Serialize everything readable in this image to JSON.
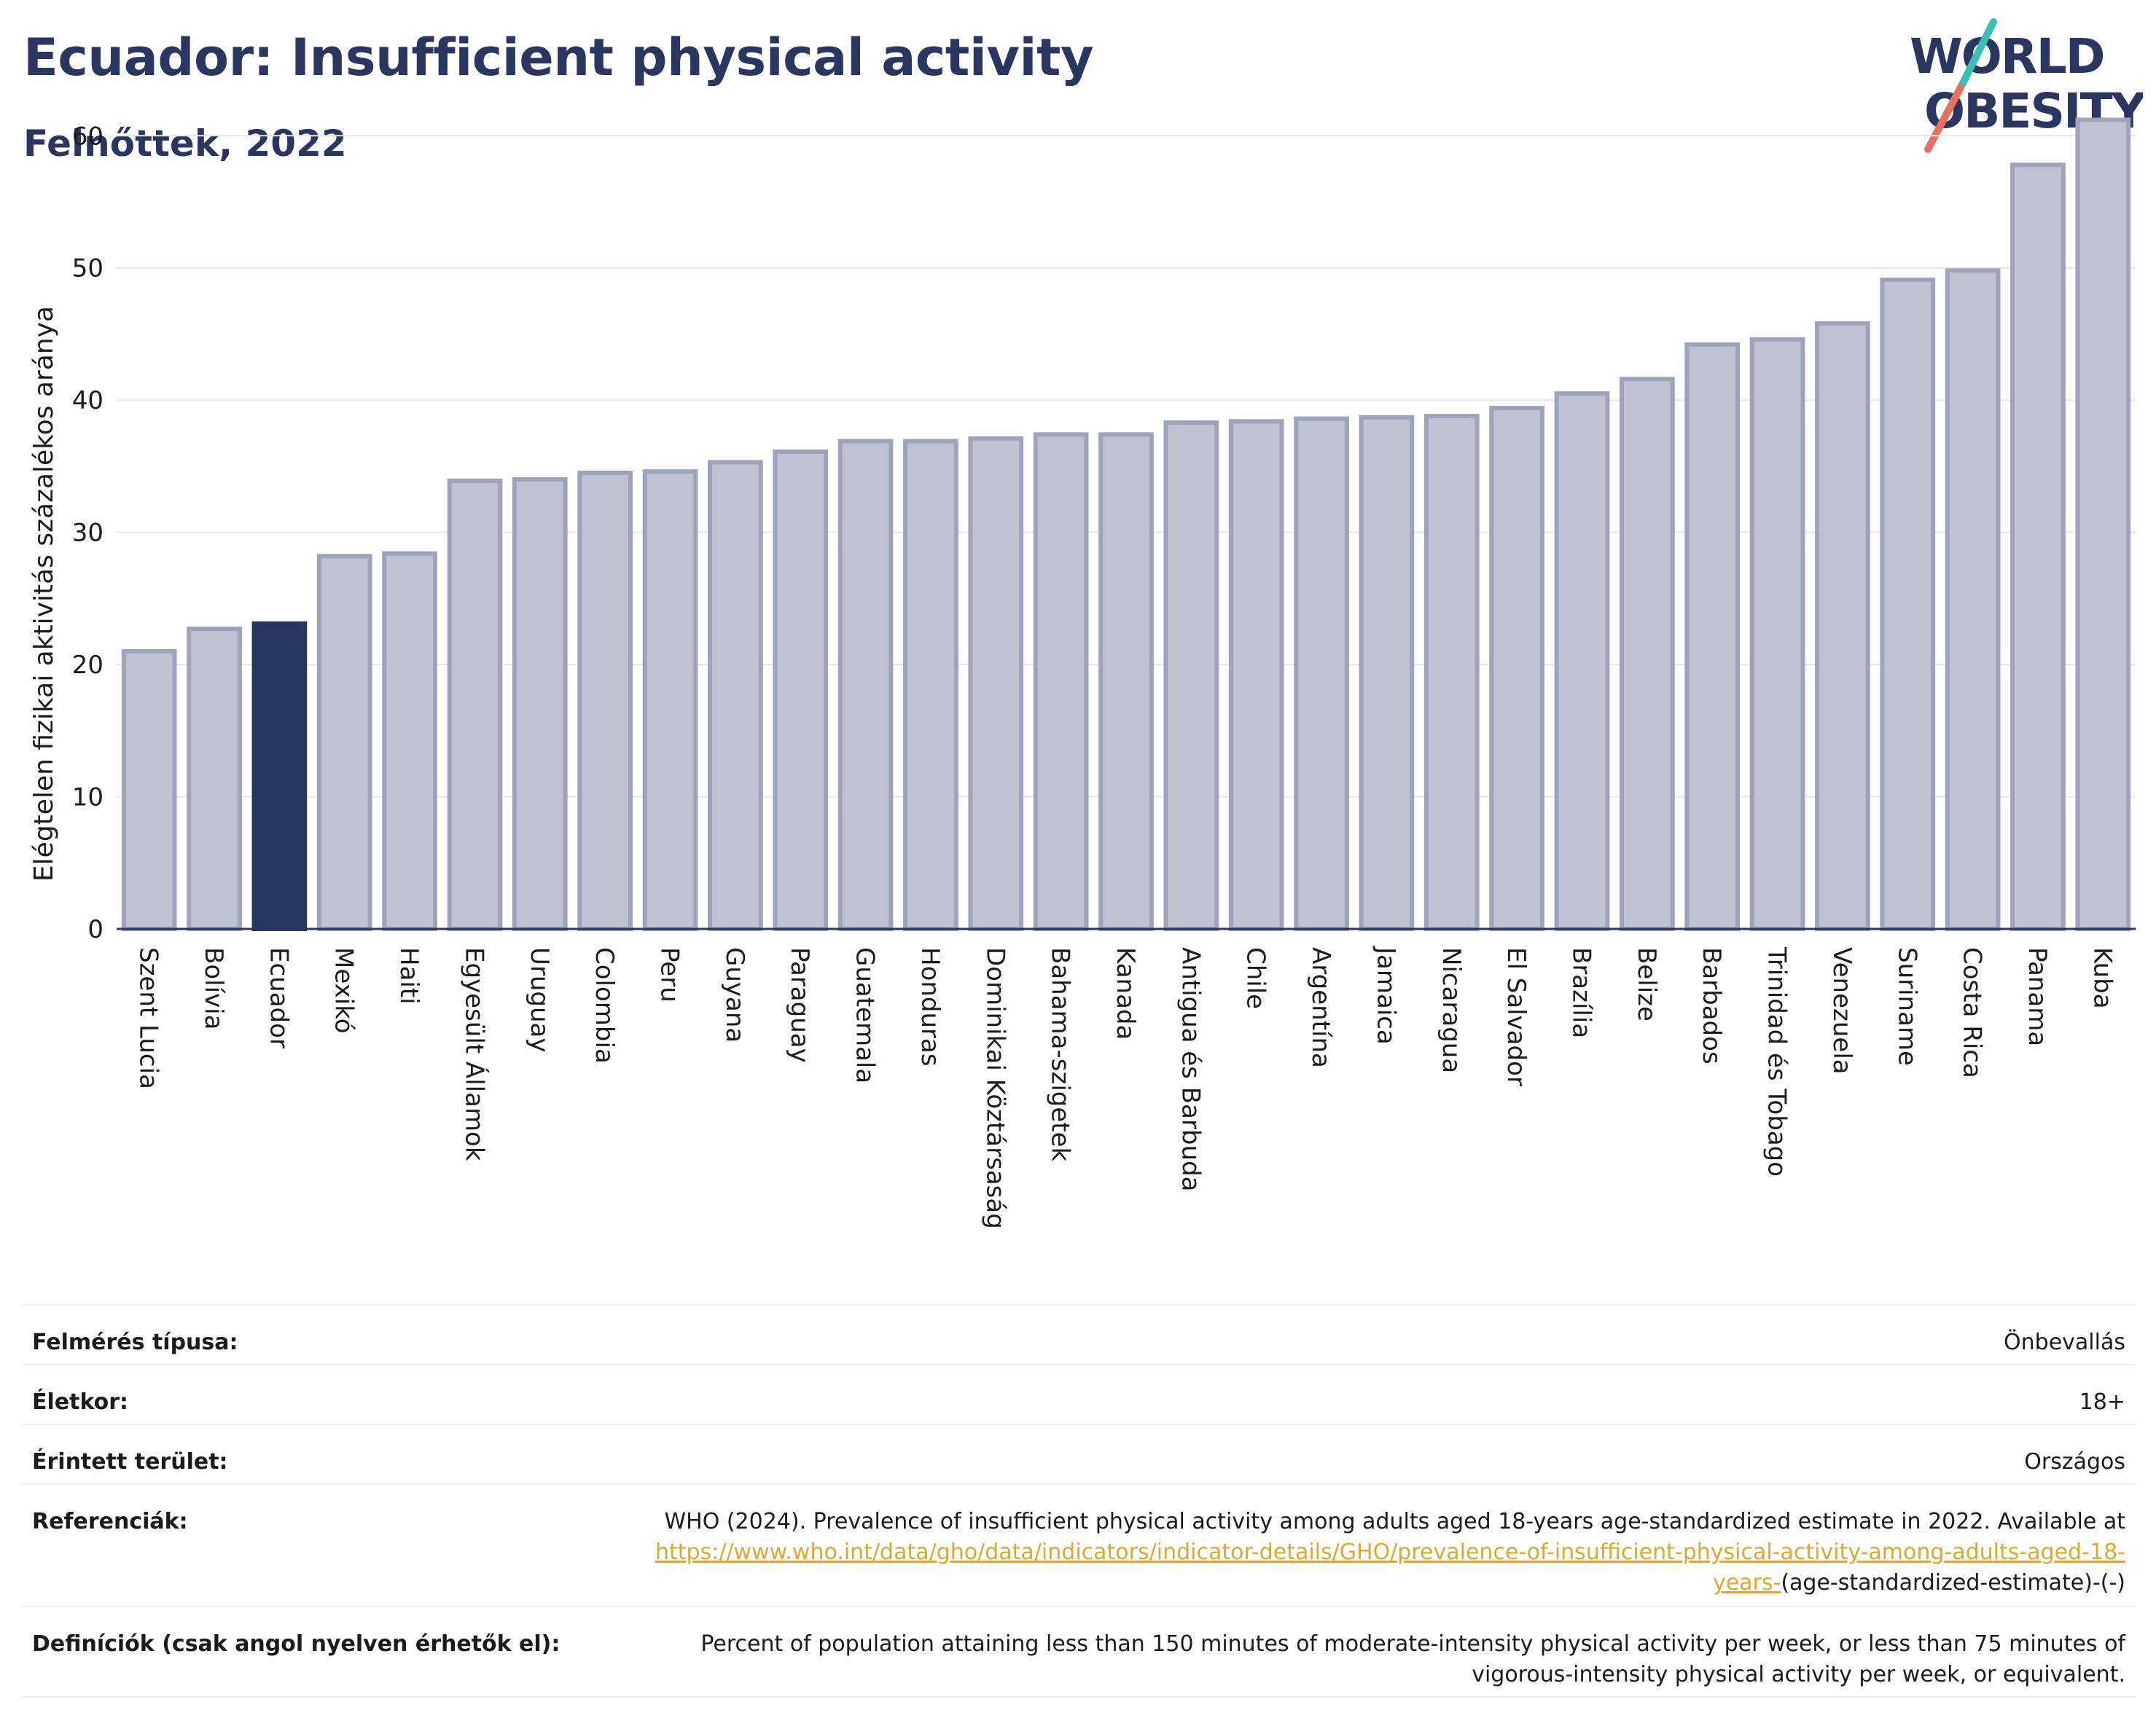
{
  "header": {
    "title": "Ecuador: Insufficient physical activity",
    "subtitle": "Felnőttek, 2022"
  },
  "logo": {
    "line1": "WORLD",
    "line2": "OBESITY"
  },
  "colors": {
    "highlight": "#2a3560",
    "bar": "#bfc2d1",
    "bar_stroke": "#9ea3bb",
    "accent_teal": "#3bbfb2",
    "accent_coral": "#e8705c"
  },
  "chart_data": {
    "type": "bar",
    "title": "Ecuador: Insufficient physical activity",
    "subtitle": "Felnőttek, 2022",
    "xlabel": "",
    "ylabel": "Elégtelen fizikai aktivitás százalékos aránya",
    "ylim": [
      0,
      62
    ],
    "yticks": [
      0,
      10,
      20,
      30,
      40,
      50,
      60
    ],
    "grid": true,
    "highlight": "Ecuador",
    "categories": [
      "Szent Lucia",
      "Bolívia",
      "Ecuador",
      "Mexikó",
      "Haiti",
      "Egyesült Államok",
      "Uruguay",
      "Colombia",
      "Peru",
      "Guyana",
      "Paraguay",
      "Guatemala",
      "Honduras",
      "Dominikai Köztársaság",
      "Bahama-szigetek",
      "Kanada",
      "Antigua és Barbuda",
      "Chile",
      "Argentína",
      "Jamaica",
      "Nicaragua",
      "El Salvador",
      "Brazília",
      "Belize",
      "Barbados",
      "Trinidad és Tobago",
      "Venezuela",
      "Suriname",
      "Costa Rica",
      "Panama",
      "Kuba"
    ],
    "values": [
      21.0,
      22.7,
      23.1,
      28.2,
      28.4,
      33.9,
      34.0,
      34.5,
      34.6,
      35.3,
      36.1,
      36.9,
      36.9,
      37.1,
      37.4,
      37.4,
      38.3,
      38.4,
      38.6,
      38.7,
      38.8,
      39.4,
      40.5,
      41.6,
      44.2,
      44.6,
      45.8,
      49.1,
      49.8,
      57.8,
      61.2
    ]
  },
  "info": {
    "survey_label": "Felmérés típusa:",
    "survey_value": "Önbevallás",
    "age_label": "Életkor:",
    "age_value": "18+",
    "area_label": "Érintett terület:",
    "area_value": "Országos",
    "refs_label": "Referenciák:",
    "refs_text": "WHO (2024). Prevalence of insufficient physical activity among adults aged 18-years age-standardized estimate in 2022. Available at",
    "refs_link": "https://www.who.int/data/gho/data/indicators/indicator-details/GHO/prevalence-of-insufficient-physical-activity-among-adults-aged-18-years-",
    "refs_suffix": "(age-standardized-estimate)-(-)",
    "defs_label": "Definíciók (csak angol nyelven érhetők el):",
    "defs_text": "Percent of population attaining less than 150 minutes of moderate-intensity physical activity per week, or less than 75 minutes of vigorous-intensity physical activity per week, or equivalent."
  }
}
